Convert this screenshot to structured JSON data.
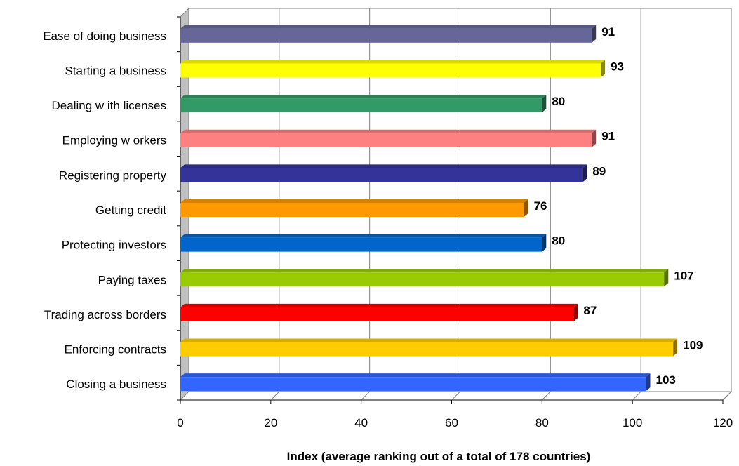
{
  "chart_data": {
    "type": "bar",
    "orientation": "horizontal",
    "title": "",
    "xlabel": "Index (average ranking out of a total of 178 countries)",
    "ylabel": "",
    "xlim": [
      0,
      120
    ],
    "xticks": [
      0,
      20,
      40,
      60,
      80,
      100,
      120
    ],
    "grid": true,
    "categories": [
      "Ease of doing business",
      "Starting a business",
      "Dealing w ith licenses",
      "Employing w orkers",
      "Registering property",
      "Getting credit",
      "Protecting investors",
      "Paying taxes",
      "Trading across borders",
      "Enforcing contracts",
      "Closing a business"
    ],
    "values": [
      91,
      93,
      80,
      91,
      89,
      76,
      80,
      107,
      87,
      109,
      103
    ],
    "colors": [
      "#666699",
      "#FFFF00",
      "#339966",
      "#FF8080",
      "#333399",
      "#FF9900",
      "#0066CC",
      "#99CC00",
      "#FF0000",
      "#FFCC00",
      "#3366FF"
    ]
  }
}
